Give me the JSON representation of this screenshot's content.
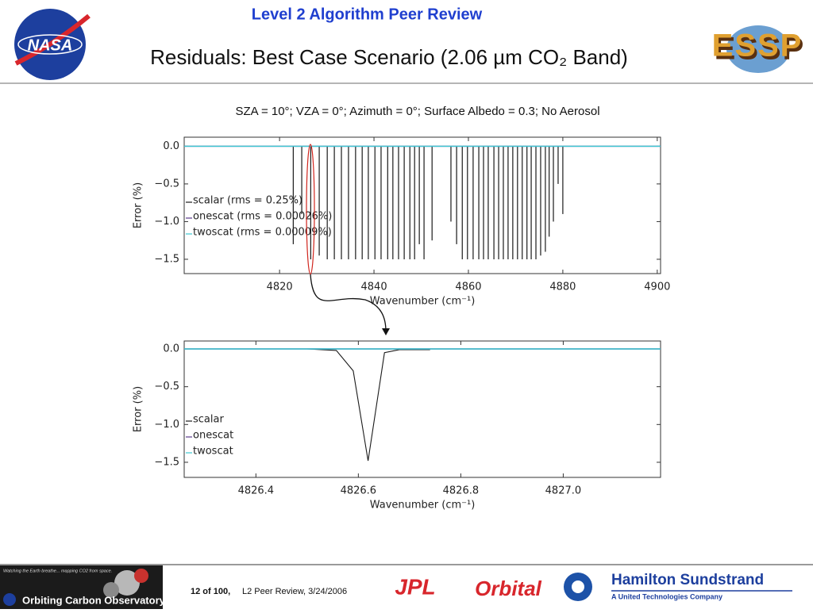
{
  "header": {
    "kicker": "Level 2 Algorithm Peer Review",
    "title": "Residuals: Best Case Scenario (2.06 µm CO₂ Band)",
    "subtitle": "SZA = 10°; VZA = 0°; Azimuth = 0°; Surface Albedo = 0.3; No Aerosol"
  },
  "logos": {
    "nasa": "NASA",
    "essp": "ESSP",
    "oco_tagline": "Watching the Earth breathe... mapping CO2 from space.",
    "oco": "Orbiting Carbon Observatory",
    "jpl": "JPL",
    "orbital": "Orbital",
    "hamilton": "Hamilton Sundstrand",
    "hamilton_sub": "A United Technologies Company"
  },
  "footer": {
    "page": "12 of 100,",
    "event": "L2 Peer Review, 3/24/2006"
  },
  "chart_data": [
    {
      "type": "stem",
      "x_label": "Wavenumber (cm⁻¹)",
      "y_label": "Error (%)",
      "xlim": [
        4799.8,
        4900.7
      ],
      "ylim": [
        -1.69,
        0.12
      ],
      "xticks": [
        4820,
        4840,
        4860,
        4880,
        4900
      ],
      "yticks": [
        {
          "value": 0,
          "label": "0.0"
        },
        {
          "value": -0.5,
          "label": "−0.5"
        },
        {
          "value": -1,
          "label": "−1.0"
        },
        {
          "value": -1.5,
          "label": "−1.5"
        }
      ],
      "legend": "center left",
      "series": [
        {
          "name": "scalar (rms = 0.25%)",
          "color": "#1a1a1a",
          "x": [
            4822.9,
            4824.7,
            4826.6,
            4828.4,
            4830.1,
            4831.6,
            4833.1,
            4834.6,
            4836.1,
            4837.5,
            4838.8,
            4840.2,
            4841.5,
            4842.9,
            4844.0,
            4845.2,
            4846.4,
            4847.6,
            4848.6,
            4849.6,
            4850.6,
            4852.3,
            4856.3,
            4857.5,
            4858.7,
            4859.8,
            4861.0,
            4862.2,
            4863.2,
            4864.2,
            4865.4,
            4866.4,
            4867.4,
            4868.4,
            4869.4,
            4870.4,
            4871.4,
            4872.4,
            4873.3,
            4874.3,
            4875.3,
            4876.3,
            4877.1,
            4878.0,
            4879.0,
            4880.0
          ],
          "values": [
            -1.3,
            -0.9,
            -1.5,
            -1.45,
            -1.5,
            -1.5,
            -1.5,
            -1.5,
            -1.5,
            -1.5,
            -1.5,
            -1.5,
            -1.5,
            -1.5,
            -1.5,
            -1.5,
            -1.5,
            -1.5,
            -1.5,
            -1.3,
            -1.5,
            -1.25,
            -1.0,
            -1.3,
            -1.5,
            -1.5,
            -1.5,
            -1.5,
            -1.5,
            -1.5,
            -1.5,
            -1.5,
            -1.5,
            -1.5,
            -1.5,
            -1.5,
            -1.5,
            -1.5,
            -1.5,
            -1.5,
            -1.45,
            -1.4,
            -1.2,
            -1.0,
            -0.5,
            -0.9
          ]
        },
        {
          "name": "onescat (rms = 0.00026%)",
          "color": "#5b3a8c",
          "x": [
            4799.8,
            4900.7
          ],
          "values": [
            0,
            0
          ]
        },
        {
          "name": "twoscat (rms = 0.00009%)",
          "color": "#3cc8d2",
          "x": [
            4799.8,
            4900.7
          ],
          "values": [
            0,
            0
          ]
        }
      ]
    },
    {
      "type": "line",
      "x_label": "Wavenumber (cm⁻¹)",
      "y_label": "Error (%)",
      "xlim": [
        4826.26,
        4827.19
      ],
      "ylim": [
        -1.7,
        0.105
      ],
      "xticks": [
        4826.4,
        4826.6,
        4826.8,
        {
          "value": 4827,
          "label": "4827.0"
        }
      ],
      "yticks": [
        {
          "value": 0,
          "label": "0.0"
        },
        {
          "value": -0.5,
          "label": "−0.5"
        },
        {
          "value": -1,
          "label": "−1.0"
        },
        {
          "value": -1.5,
          "label": "−1.5"
        }
      ],
      "legend": "lower left",
      "series": [
        {
          "name": "scalar",
          "color": "#1a1a1a",
          "x": [
            4826.499,
            4826.557,
            4826.59,
            4826.619,
            4826.651,
            4826.68,
            4826.74
          ],
          "values": [
            0,
            -0.02,
            -0.29,
            -1.48,
            -0.05,
            -0.01,
            -0.01
          ]
        },
        {
          "name": "onescat",
          "color": "#5b3a8c",
          "x": [
            4826.26,
            4827.19
          ],
          "values": [
            0,
            0
          ]
        },
        {
          "name": "twoscat",
          "color": "#3cc8d2",
          "x": [
            4826.26,
            4827.19
          ],
          "values": [
            0,
            0
          ]
        }
      ]
    }
  ]
}
